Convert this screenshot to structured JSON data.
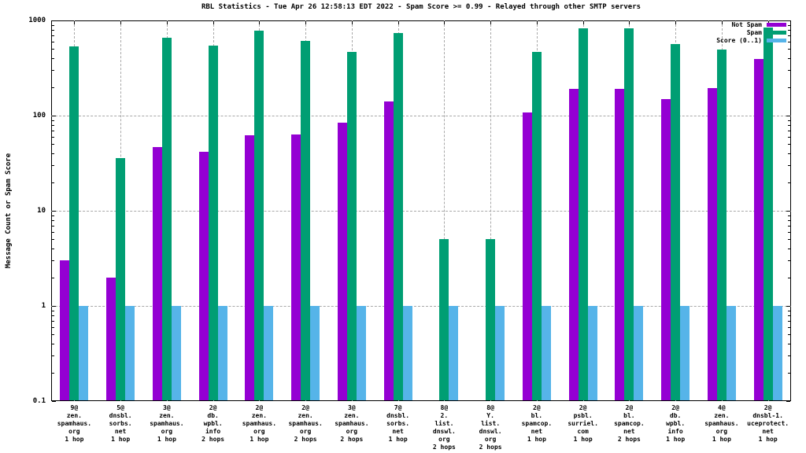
{
  "chart_data": {
    "type": "bar",
    "title": "RBL Statistics - Tue Apr 26 12:58:13 EDT 2022 - Spam Score >= 0.99 - Relayed through other SMTP servers",
    "ylabel": "Message Count or Spam Score",
    "xlabel": "",
    "yscale": "log",
    "ylim": [
      0.1,
      1000
    ],
    "ytick_labels": [
      "1000",
      "100",
      "10",
      "1",
      "0.1"
    ],
    "ytick_values": [
      1000,
      100,
      10,
      1,
      0.1
    ],
    "grid": true,
    "legend_position": "top-right-inside",
    "categories": [
      "9@\nzen.\nspamhaus.\norg\n1 hop",
      "5@\ndnsbl.\nsorbs.\nnet\n1 hop",
      "3@\nzen.\nspamhaus.\norg\n1 hop",
      "2@\ndb.\nwpbl.\ninfo\n2 hops",
      "2@\nzen.\nspamhaus.\norg\n1 hop",
      "2@\nzen.\nspamhaus.\norg\n2 hops",
      "3@\nzen.\nspamhaus.\norg\n2 hops",
      "7@\ndnsbl.\nsorbs.\nnet\n1 hop",
      "8@\n2.\nlist.\ndnswl.\norg\n2 hops",
      "8@\nY.\nlist.\ndnswl.\norg\n2 hops",
      "2@\nbl.\nspamcop.\nnet\n1 hop",
      "2@\npsbl.\nsurriel.\ncom\n1 hop",
      "2@\nbl.\nspamcop.\nnet\n2 hops",
      "2@\ndb.\nwpbl.\ninfo\n1 hop",
      "4@\nzen.\nspamhaus.\norg\n1 hop",
      "2@\ndnsbl-1.\nuceprotect.\nnet\n1 hop"
    ],
    "series": [
      {
        "name": "Not Spam",
        "color": "#9400d3",
        "values": [
          3,
          2,
          47,
          42,
          62,
          63,
          84,
          140,
          null,
          null,
          108,
          190,
          190,
          150,
          195,
          390
        ]
      },
      {
        "name": "Spam",
        "color": "#009e73",
        "values": [
          530,
          36,
          660,
          540,
          780,
          610,
          470,
          740,
          5,
          5,
          470,
          830,
          820,
          560,
          490,
          840
        ]
      },
      {
        "name": "Score (0..1)",
        "color": "#56b4e9",
        "values": [
          1,
          1,
          1,
          1,
          1,
          1,
          1,
          1,
          1,
          1,
          1,
          1,
          1,
          1,
          1,
          1
        ]
      }
    ]
  },
  "colors": {
    "background": "#ffffff",
    "frame": "#000000",
    "grid": "#a8a8a8",
    "not_spam": "#9400d3",
    "spam": "#009e73",
    "score": "#56b4e9"
  }
}
